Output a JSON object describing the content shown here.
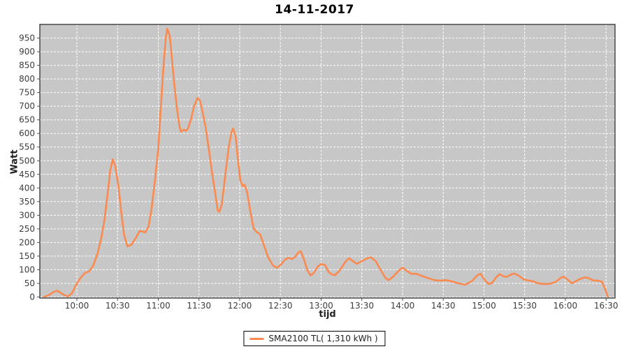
{
  "title": "14-11-2017",
  "axes": {
    "y_label": "Watt",
    "x_label": "tijd"
  },
  "legend": {
    "label": "SMA2100 TL( 1,310 kWh )",
    "swatch_color": "#fa8a50"
  },
  "colors": {
    "plot_bg": "#c7c7c7",
    "grid": "#ffffff",
    "series": "#fa8a50",
    "tick_label": "#3d3d3d",
    "axis_border": "#2f2f2f",
    "tick_mark": "#555555"
  },
  "chart_data": {
    "type": "line",
    "title": "14-11-2017",
    "xlabel": "tijd",
    "ylabel": "Watt",
    "legend_position": "bottom",
    "grid": "white-dashed",
    "ylim": [
      0,
      1000
    ],
    "xlim_hours": [
      9.545,
      16.61
    ],
    "y_ticks": [
      0,
      50,
      100,
      150,
      200,
      250,
      300,
      350,
      400,
      450,
      500,
      550,
      600,
      650,
      700,
      750,
      800,
      850,
      900,
      950
    ],
    "x_tick_hours": [
      10.0,
      10.5,
      11.0,
      11.5,
      12.0,
      12.5,
      13.0,
      13.5,
      14.0,
      14.5,
      15.0,
      15.5,
      16.0,
      16.5
    ],
    "x_tick_labels": [
      "10:00",
      "10:30",
      "11:00",
      "11:30",
      "12:00",
      "12:30",
      "13:00",
      "13:30",
      "14:00",
      "14:30",
      "15:00",
      "15:30",
      "16:00",
      "16:30"
    ],
    "series": [
      {
        "name": "SMA2100 TL( 1,310 kWh )",
        "color": "#fa8a50",
        "points_time_watt": [
          [
            9.6,
            1
          ],
          [
            9.65,
            6
          ],
          [
            9.7,
            16
          ],
          [
            9.75,
            23
          ],
          [
            9.79,
            18
          ],
          [
            9.84,
            8
          ],
          [
            9.89,
            2
          ],
          [
            9.94,
            14
          ],
          [
            10.0,
            50
          ],
          [
            10.05,
            72
          ],
          [
            10.1,
            88
          ],
          [
            10.15,
            94
          ],
          [
            10.2,
            115
          ],
          [
            10.25,
            155
          ],
          [
            10.3,
            215
          ],
          [
            10.34,
            285
          ],
          [
            10.38,
            385
          ],
          [
            10.41,
            465
          ],
          [
            10.44,
            505
          ],
          [
            10.47,
            482
          ],
          [
            10.51,
            408
          ],
          [
            10.55,
            298
          ],
          [
            10.58,
            228
          ],
          [
            10.62,
            186
          ],
          [
            10.67,
            192
          ],
          [
            10.72,
            215
          ],
          [
            10.77,
            242
          ],
          [
            10.81,
            240
          ],
          [
            10.84,
            237
          ],
          [
            10.88,
            258
          ],
          [
            10.92,
            330
          ],
          [
            10.96,
            430
          ],
          [
            11.0,
            545
          ],
          [
            11.03,
            690
          ],
          [
            11.06,
            830
          ],
          [
            11.09,
            945
          ],
          [
            11.11,
            985
          ],
          [
            11.14,
            960
          ],
          [
            11.17,
            865
          ],
          [
            11.2,
            770
          ],
          [
            11.23,
            690
          ],
          [
            11.26,
            625
          ],
          [
            11.28,
            606
          ],
          [
            11.31,
            614
          ],
          [
            11.34,
            610
          ],
          [
            11.36,
            615
          ],
          [
            11.4,
            650
          ],
          [
            11.44,
            700
          ],
          [
            11.48,
            730
          ],
          [
            11.51,
            722
          ],
          [
            11.54,
            685
          ],
          [
            11.58,
            625
          ],
          [
            11.62,
            545
          ],
          [
            11.66,
            455
          ],
          [
            11.7,
            380
          ],
          [
            11.73,
            318
          ],
          [
            11.75,
            312
          ],
          [
            11.78,
            340
          ],
          [
            11.82,
            440
          ],
          [
            11.86,
            540
          ],
          [
            11.9,
            605
          ],
          [
            11.92,
            618
          ],
          [
            11.95,
            588
          ],
          [
            11.98,
            498
          ],
          [
            12.01,
            425
          ],
          [
            12.04,
            406
          ],
          [
            12.06,
            412
          ],
          [
            12.09,
            385
          ],
          [
            12.13,
            315
          ],
          [
            12.17,
            252
          ],
          [
            12.21,
            238
          ],
          [
            12.25,
            230
          ],
          [
            12.3,
            188
          ],
          [
            12.35,
            145
          ],
          [
            12.41,
            115
          ],
          [
            12.46,
            107
          ],
          [
            12.51,
            120
          ],
          [
            12.56,
            138
          ],
          [
            12.6,
            144
          ],
          [
            12.64,
            139
          ],
          [
            12.68,
            147
          ],
          [
            12.72,
            164
          ],
          [
            12.75,
            168
          ],
          [
            12.79,
            138
          ],
          [
            12.83,
            98
          ],
          [
            12.87,
            79
          ],
          [
            12.91,
            88
          ],
          [
            12.96,
            112
          ],
          [
            13.0,
            121
          ],
          [
            13.05,
            117
          ],
          [
            13.09,
            92
          ],
          [
            13.13,
            83
          ],
          [
            13.17,
            80
          ],
          [
            13.23,
            98
          ],
          [
            13.29,
            126
          ],
          [
            13.34,
            142
          ],
          [
            13.39,
            132
          ],
          [
            13.44,
            122
          ],
          [
            13.5,
            131
          ],
          [
            13.56,
            141
          ],
          [
            13.61,
            146
          ],
          [
            13.67,
            132
          ],
          [
            13.73,
            100
          ],
          [
            13.79,
            70
          ],
          [
            13.83,
            62
          ],
          [
            13.89,
            76
          ],
          [
            13.95,
            96
          ],
          [
            14.0,
            108
          ],
          [
            14.06,
            94
          ],
          [
            14.11,
            85
          ],
          [
            14.17,
            85
          ],
          [
            14.23,
            78
          ],
          [
            14.31,
            70
          ],
          [
            14.39,
            62
          ],
          [
            14.46,
            60
          ],
          [
            14.53,
            62
          ],
          [
            14.61,
            57
          ],
          [
            14.69,
            50
          ],
          [
            14.77,
            45
          ],
          [
            14.85,
            58
          ],
          [
            14.92,
            80
          ],
          [
            14.96,
            85
          ],
          [
            15.01,
            62
          ],
          [
            15.06,
            47
          ],
          [
            15.1,
            52
          ],
          [
            15.15,
            72
          ],
          [
            15.19,
            84
          ],
          [
            15.24,
            76
          ],
          [
            15.28,
            74
          ],
          [
            15.33,
            82
          ],
          [
            15.37,
            86
          ],
          [
            15.43,
            78
          ],
          [
            15.49,
            64
          ],
          [
            15.54,
            61
          ],
          [
            15.6,
            58
          ],
          [
            15.66,
            51
          ],
          [
            15.72,
            48
          ],
          [
            15.8,
            48
          ],
          [
            15.88,
            55
          ],
          [
            15.94,
            70
          ],
          [
            15.98,
            75
          ],
          [
            16.03,
            63
          ],
          [
            16.08,
            51
          ],
          [
            16.13,
            58
          ],
          [
            16.18,
            66
          ],
          [
            16.24,
            72
          ],
          [
            16.28,
            70
          ],
          [
            16.34,
            61
          ],
          [
            16.4,
            60
          ],
          [
            16.45,
            56
          ],
          [
            16.49,
            28
          ],
          [
            16.52,
            2
          ]
        ]
      }
    ]
  }
}
